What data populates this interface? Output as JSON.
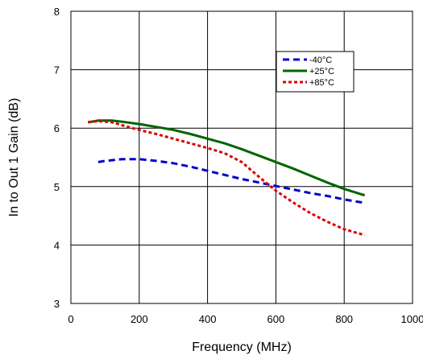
{
  "chart_data": {
    "type": "line",
    "xlabel": "Frequency (MHz)",
    "ylabel": "In to Out 1 Gain (dB)",
    "xlim": [
      0,
      1000
    ],
    "ylim": [
      3,
      8
    ],
    "x_ticks": [
      0,
      200,
      400,
      600,
      800,
      1000
    ],
    "y_ticks": [
      3,
      4,
      5,
      6,
      7,
      8
    ],
    "x_tick_labels": [
      "0",
      "200",
      "400",
      "600",
      "800",
      "1000"
    ],
    "y_tick_labels": [
      "3",
      "4",
      "5",
      "6",
      "7",
      "8"
    ],
    "grid": true,
    "legend_position": "top-right",
    "series": [
      {
        "name": "-40°C",
        "color": "#0000CC",
        "dash": "dashed",
        "x": [
          80,
          100,
          150,
          200,
          250,
          300,
          350,
          400,
          450,
          500,
          550,
          600,
          650,
          700,
          750,
          800,
          860
        ],
        "y": [
          5.42,
          5.44,
          5.47,
          5.47,
          5.44,
          5.4,
          5.34,
          5.27,
          5.2,
          5.13,
          5.07,
          5.01,
          4.95,
          4.89,
          4.84,
          4.78,
          4.72
        ]
      },
      {
        "name": "+25°C",
        "color": "#006400",
        "dash": "solid",
        "x": [
          50,
          80,
          120,
          150,
          200,
          250,
          300,
          350,
          400,
          450,
          500,
          550,
          600,
          650,
          700,
          750,
          800,
          860
        ],
        "y": [
          6.1,
          6.13,
          6.13,
          6.11,
          6.07,
          6.02,
          5.97,
          5.9,
          5.82,
          5.74,
          5.64,
          5.53,
          5.42,
          5.31,
          5.19,
          5.07,
          4.96,
          4.85
        ]
      },
      {
        "name": "+85°C",
        "color": "#DD0000",
        "dash": "dotted",
        "x": [
          50,
          80,
          120,
          150,
          200,
          250,
          300,
          350,
          400,
          450,
          500,
          550,
          600,
          650,
          700,
          750,
          800,
          860
        ],
        "y": [
          6.1,
          6.12,
          6.1,
          6.05,
          5.97,
          5.9,
          5.82,
          5.74,
          5.66,
          5.57,
          5.42,
          5.17,
          4.93,
          4.73,
          4.55,
          4.4,
          4.27,
          4.17
        ]
      }
    ]
  }
}
